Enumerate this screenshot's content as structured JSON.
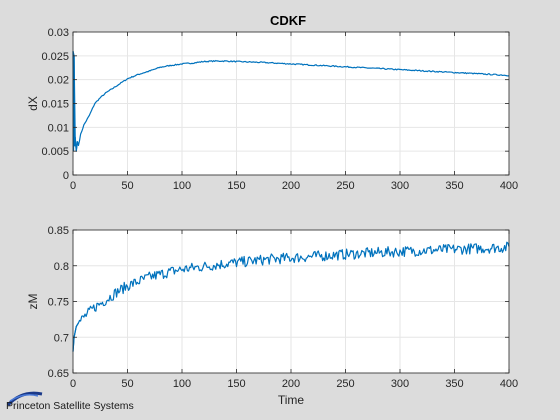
{
  "figure_title": "CDKF",
  "branding": {
    "logo_text": "Princeton Satellite Systems"
  },
  "colors": {
    "line": "#0072bd",
    "axes_bg": "#ffffff",
    "figure_bg": "#dcdcdc",
    "grid": "#e6e6e6"
  },
  "chart_data": [
    {
      "type": "line",
      "title": "CDKF",
      "xlabel": "",
      "ylabel": "dX",
      "xlim": [
        0,
        400
      ],
      "ylim": [
        0,
        0.03
      ],
      "xticks": [
        0,
        50,
        100,
        150,
        200,
        250,
        300,
        350,
        400
      ],
      "yticks": [
        0,
        0.005,
        0.01,
        0.015,
        0.02,
        0.025,
        0.03
      ],
      "xtick_labels": [
        "0",
        "50",
        "100",
        "150",
        "200",
        "250",
        "300",
        "350",
        "400"
      ],
      "ytick_labels": [
        "0",
        "0.005",
        "0.01",
        "0.015",
        "0.02",
        "0.025",
        "0.03"
      ],
      "grid": true,
      "noise": 0.00012,
      "series": [
        {
          "points": [
            [
              0,
              0.026
            ],
            [
              0.5,
              0.005
            ],
            [
              1,
              0.025
            ],
            [
              1.5,
              0.006
            ],
            [
              2,
              0.008
            ],
            [
              3,
              0.005
            ],
            [
              4,
              0.007
            ],
            [
              5,
              0.0062
            ],
            [
              7,
              0.0085
            ],
            [
              10,
              0.0105
            ],
            [
              15,
              0.0125
            ],
            [
              20,
              0.015
            ],
            [
              25,
              0.0162
            ],
            [
              30,
              0.0172
            ],
            [
              40,
              0.0187
            ],
            [
              50,
              0.0202
            ],
            [
              60,
              0.0211
            ],
            [
              70,
              0.0218
            ],
            [
              80,
              0.0226
            ],
            [
              90,
              0.023
            ],
            [
              100,
              0.0233
            ],
            [
              110,
              0.0235
            ],
            [
              120,
              0.0238
            ],
            [
              130,
              0.0239
            ],
            [
              140,
              0.0239
            ],
            [
              150,
              0.0238
            ],
            [
              175,
              0.0236
            ],
            [
              200,
              0.0233
            ],
            [
              225,
              0.023
            ],
            [
              250,
              0.0227
            ],
            [
              275,
              0.0224
            ],
            [
              300,
              0.0221
            ],
            [
              325,
              0.0218
            ],
            [
              350,
              0.0215
            ],
            [
              375,
              0.0212
            ],
            [
              400,
              0.0209
            ]
          ]
        }
      ]
    },
    {
      "type": "line",
      "title": "",
      "xlabel": "Time",
      "ylabel": "zM",
      "xlim": [
        0,
        400
      ],
      "ylim": [
        0.65,
        0.85
      ],
      "xticks": [
        0,
        50,
        100,
        150,
        200,
        250,
        300,
        350,
        400
      ],
      "yticks": [
        0.65,
        0.7,
        0.75,
        0.8,
        0.85
      ],
      "xtick_labels": [
        "0",
        "50",
        "100",
        "150",
        "200",
        "250",
        "300",
        "350",
        "400"
      ],
      "ytick_labels": [
        "0.65",
        "0.7",
        "0.75",
        "0.8",
        "0.85"
      ],
      "grid": true,
      "noise": 0.0075,
      "series": [
        {
          "points": [
            [
              0,
              0.68
            ],
            [
              1,
              0.7
            ],
            [
              3,
              0.715
            ],
            [
              5,
              0.72
            ],
            [
              10,
              0.728
            ],
            [
              20,
              0.742
            ],
            [
              30,
              0.752
            ],
            [
              40,
              0.763
            ],
            [
              50,
              0.772
            ],
            [
              60,
              0.778
            ],
            [
              70,
              0.784
            ],
            [
              80,
              0.788
            ],
            [
              90,
              0.792
            ],
            [
              100,
              0.795
            ],
            [
              120,
              0.799
            ],
            [
              140,
              0.803
            ],
            [
              160,
              0.806
            ],
            [
              180,
              0.809
            ],
            [
              200,
              0.811
            ],
            [
              250,
              0.816
            ],
            [
              300,
              0.82
            ],
            [
              350,
              0.823
            ],
            [
              400,
              0.826
            ]
          ]
        }
      ]
    }
  ]
}
